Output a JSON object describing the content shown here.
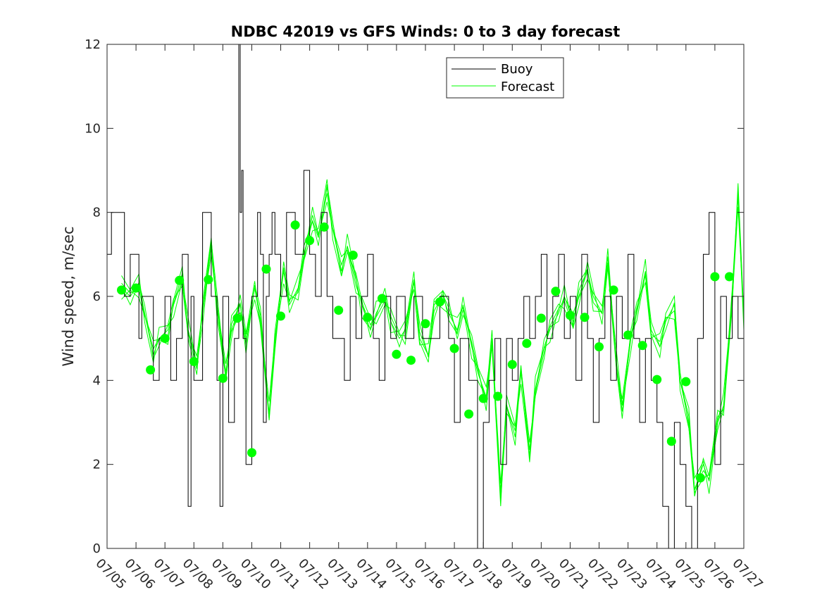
{
  "chart_data": {
    "type": "line",
    "title": "NDBC 42019 vs GFS Winds: 0 to 3 day forecast",
    "xlabel": "",
    "ylabel": "Wind speed, m/sec",
    "xlim": [
      0,
      22
    ],
    "ylim": [
      0,
      12
    ],
    "yticks": [
      0,
      2,
      4,
      6,
      8,
      10,
      12
    ],
    "xtick_labels": [
      "07/05",
      "07/06",
      "07/07",
      "07/08",
      "07/09",
      "07/10",
      "07/11",
      "07/12",
      "07/13",
      "07/14",
      "07/15",
      "07/16",
      "07/17",
      "07/18",
      "07/19",
      "07/20",
      "07/21",
      "07/22",
      "07/23",
      "07/24",
      "07/25",
      "07/26",
      "07/27"
    ],
    "grid": false,
    "legend_position": "top-center",
    "colors": {
      "buoy": "#000000",
      "forecast": "#00ff00"
    },
    "legend": [
      "Buoy",
      "Forecast"
    ],
    "series": [
      {
        "name": "Buoy",
        "style": "step",
        "x": [
          0,
          0.15,
          0.6,
          0.8,
          1.1,
          1.2,
          1.3,
          1.6,
          1.8,
          2.0,
          2.2,
          2.4,
          2.6,
          2.8,
          2.9,
          3.0,
          3.3,
          3.6,
          3.8,
          3.9,
          4.0,
          4.2,
          4.4,
          4.55,
          4.6,
          4.65,
          4.7,
          4.8,
          5.0,
          5.2,
          5.3,
          5.4,
          5.5,
          5.6,
          5.7,
          5.8,
          6.0,
          6.2,
          6.5,
          6.8,
          7.0,
          7.2,
          7.4,
          7.6,
          7.8,
          8.0,
          8.2,
          8.4,
          8.6,
          8.8,
          9.0,
          9.2,
          9.4,
          9.6,
          9.8,
          10.0,
          10.3,
          10.6,
          10.9,
          11.2,
          11.5,
          11.8,
          12.0,
          12.2,
          12.5,
          12.8,
          13.0,
          13.2,
          13.4,
          13.6,
          13.8,
          14.0,
          14.2,
          14.4,
          14.6,
          14.8,
          15.0,
          15.2,
          15.4,
          15.6,
          15.8,
          16.0,
          16.2,
          16.4,
          16.6,
          16.8,
          17.0,
          17.2,
          17.4,
          17.6,
          17.8,
          18.0,
          18.2,
          18.4,
          18.6,
          18.8,
          19.0,
          19.2,
          19.4,
          19.6,
          19.8,
          20.0,
          20.2,
          20.4,
          20.6,
          20.8,
          21.0,
          21.2,
          21.4,
          21.6,
          21.8,
          22.0
        ],
        "y": [
          7,
          8,
          6,
          7,
          5,
          6,
          6,
          4,
          5,
          6,
          4,
          5,
          7,
          1,
          6,
          4,
          8,
          6,
          4,
          1,
          6,
          3,
          5,
          12,
          8,
          9,
          5,
          2,
          6,
          8,
          7,
          3,
          6,
          7,
          8,
          7,
          6,
          8,
          7,
          9,
          7,
          6,
          8,
          6,
          5,
          5,
          4,
          6,
          5,
          6,
          7,
          5,
          4,
          6,
          5,
          6,
          5,
          6,
          5,
          5,
          6,
          5,
          3,
          5,
          4,
          0,
          3,
          4,
          5,
          2,
          5,
          4,
          5,
          6,
          5,
          6,
          7,
          5,
          6,
          7,
          5,
          6,
          4,
          7,
          5,
          3,
          5,
          6,
          4,
          6,
          5,
          7,
          5,
          3,
          5,
          4,
          3,
          1,
          0,
          3,
          2,
          1,
          0,
          5,
          7,
          8,
          2,
          6,
          5,
          6,
          5,
          4
        ]
      },
      {
        "name": "Forecast",
        "style": "ensemble",
        "x": [
          0.5,
          0.8,
          1.1,
          1.3,
          1.6,
          1.8,
          2.1,
          2.3,
          2.6,
          2.8,
          3.1,
          3.3,
          3.6,
          3.8,
          4.1,
          4.3,
          4.6,
          4.8,
          5.1,
          5.3,
          5.6,
          5.8,
          6.1,
          6.3,
          6.6,
          6.8,
          7.1,
          7.3,
          7.6,
          7.8,
          8.1,
          8.3,
          8.6,
          8.8,
          9.1,
          9.3,
          9.6,
          9.8,
          10.1,
          10.3,
          10.6,
          10.8,
          11.1,
          11.3,
          11.6,
          11.8,
          12.1,
          12.3,
          12.6,
          12.8,
          13.1,
          13.3,
          13.6,
          13.8,
          14.1,
          14.3,
          14.6,
          14.8,
          15.1,
          15.3,
          15.6,
          15.8,
          16.1,
          16.3,
          16.6,
          16.8,
          17.1,
          17.3,
          17.6,
          17.8,
          18.1,
          18.3,
          18.6,
          18.8,
          19.1,
          19.3,
          19.6,
          19.8,
          20.1,
          20.3,
          20.6,
          20.8,
          21.1,
          21.3,
          21.6,
          21.8,
          22.0
        ],
        "y": [
          6.2,
          6.0,
          6.3,
          5.6,
          4.6,
          5.0,
          5.2,
          5.8,
          6.4,
          5.2,
          4.4,
          5.6,
          7.2,
          5.8,
          4.2,
          5.2,
          5.8,
          5.0,
          6.2,
          5.4,
          3.2,
          5.0,
          6.6,
          5.8,
          6.2,
          7.0,
          7.8,
          7.4,
          8.6,
          7.6,
          6.6,
          7.2,
          6.4,
          5.8,
          5.2,
          5.6,
          6.0,
          5.4,
          5.0,
          5.2,
          6.4,
          5.0,
          4.6,
          5.8,
          6.0,
          5.6,
          5.2,
          5.8,
          4.8,
          4.2,
          3.6,
          5.0,
          1.2,
          3.4,
          2.8,
          4.2,
          2.2,
          3.8,
          4.8,
          5.2,
          5.6,
          6.0,
          5.4,
          6.0,
          6.6,
          6.0,
          5.6,
          6.8,
          4.4,
          3.4,
          5.0,
          5.6,
          6.6,
          5.2,
          4.8,
          5.4,
          5.8,
          4.0,
          3.0,
          1.4,
          2.0,
          1.6,
          3.0,
          3.4,
          6.0,
          8.4,
          5.4
        ],
        "mean_markers": {
          "x": [
            0.5,
            1.0,
            1.5,
            2.0,
            2.5,
            3.0,
            3.5,
            4.0,
            4.5,
            5.0,
            5.5,
            6.0,
            6.5,
            7.0,
            7.5,
            8.0,
            8.5,
            9.0,
            9.5,
            10.0,
            10.5,
            11.0,
            11.5,
            12.0,
            12.5,
            13.0,
            13.5,
            14.0,
            14.5,
            15.0,
            15.5,
            16.0,
            16.5,
            17.0,
            17.5,
            18.0,
            18.5,
            19.0,
            19.5,
            20.0,
            20.5,
            21.0,
            21.5
          ],
          "y": [
            6.15,
            6.2,
            4.25,
            5.0,
            6.38,
            4.45,
            6.4,
            4.05,
            5.48,
            2.28,
            6.65,
            5.53,
            7.7,
            7.33,
            7.65,
            5.67,
            6.98,
            5.5,
            5.95,
            4.62,
            4.48,
            5.35,
            5.87,
            4.76,
            3.2,
            3.57,
            3.62,
            4.38,
            4.88,
            5.48,
            6.12,
            5.55,
            5.5,
            4.8,
            6.15,
            5.08,
            4.83,
            4.02,
            2.55,
            3.97,
            1.68,
            6.47,
            6.47
          ]
        }
      }
    ]
  }
}
